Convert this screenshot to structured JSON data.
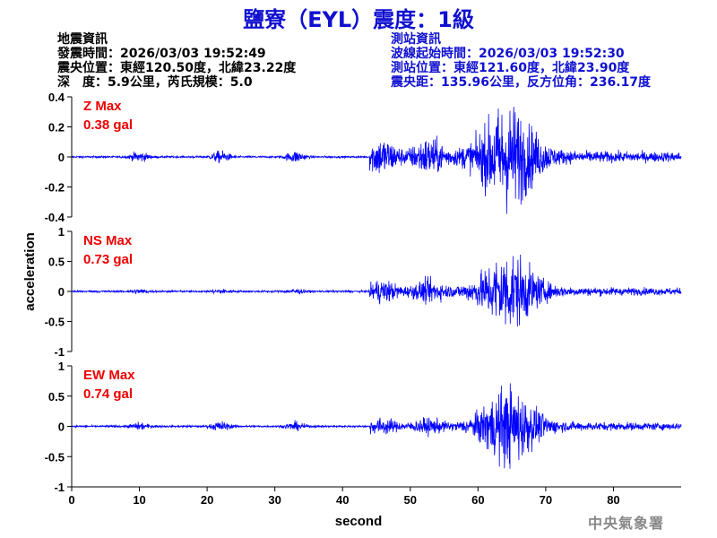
{
  "title": "鹽寮（EYL）震度：1級",
  "eq_info": {
    "heading": "地震資訊",
    "time": "發震時間：2026/03/03 19:52:49",
    "location": "震央位置：東經120.50度，北緯23.22度",
    "depth_mag": "深　度：5.9公里，芮氏規模：5.0"
  },
  "station_info": {
    "heading": "測站資訊",
    "start_time": "波線起始時間：2026/03/03 19:52:30",
    "location": "測站位置：東經121.60度，北緯23.90度",
    "distance": "震央距：135.96公里，反方位角：236.17度"
  },
  "footer": "中央氣象署",
  "chart_data": {
    "type": "line",
    "xlabel": "second",
    "ylabel": "acceleration",
    "xlim": [
      0,
      90
    ],
    "x_ticks": [
      0,
      10,
      20,
      30,
      40,
      50,
      60,
      70,
      80
    ],
    "line_color": "#0000ff",
    "label_color": "#ee0000",
    "panels": [
      {
        "name": "Z Max",
        "max_label": "0.38 gal",
        "max": 0.38,
        "ylim": [
          -0.4,
          0.4
        ],
        "y_ticks": [
          -0.4,
          -0.2,
          0,
          0.2,
          0.4
        ],
        "y_tick_labels": [
          "-0.4",
          "-0.2",
          "0",
          "0.2",
          "0.4"
        ],
        "bursts": [
          [
            10,
            0.03
          ],
          [
            22,
            0.035
          ],
          [
            33,
            0.035
          ]
        ],
        "p_amp": 0.12,
        "s_amp": 0.3,
        "tail_amp": 0.03
      },
      {
        "name": "NS Max",
        "max_label": "0.73 gal",
        "max": 0.73,
        "ylim": [
          -1,
          1
        ],
        "y_ticks": [
          -1,
          -0.5,
          0,
          0.5,
          1
        ],
        "y_tick_labels": [
          "-1",
          "-0.5",
          "0",
          "0.5",
          "1"
        ],
        "bursts": [
          [
            10,
            0.03
          ],
          [
            22,
            0.03
          ],
          [
            33,
            0.035
          ]
        ],
        "p_amp": 0.18,
        "s_amp": 0.55,
        "tail_amp": 0.05
      },
      {
        "name": "EW Max",
        "max_label": "0.74 gal",
        "max": 0.74,
        "ylim": [
          -1,
          1
        ],
        "y_ticks": [
          -1,
          -0.5,
          0,
          0.5,
          1
        ],
        "y_tick_labels": [
          "-1",
          "-0.5",
          "0",
          "0.5",
          "1"
        ],
        "bursts": [
          [
            10,
            0.05
          ],
          [
            22,
            0.07
          ],
          [
            33,
            0.06
          ]
        ],
        "p_amp": 0.12,
        "s_amp": 0.55,
        "tail_amp": 0.05
      }
    ]
  }
}
